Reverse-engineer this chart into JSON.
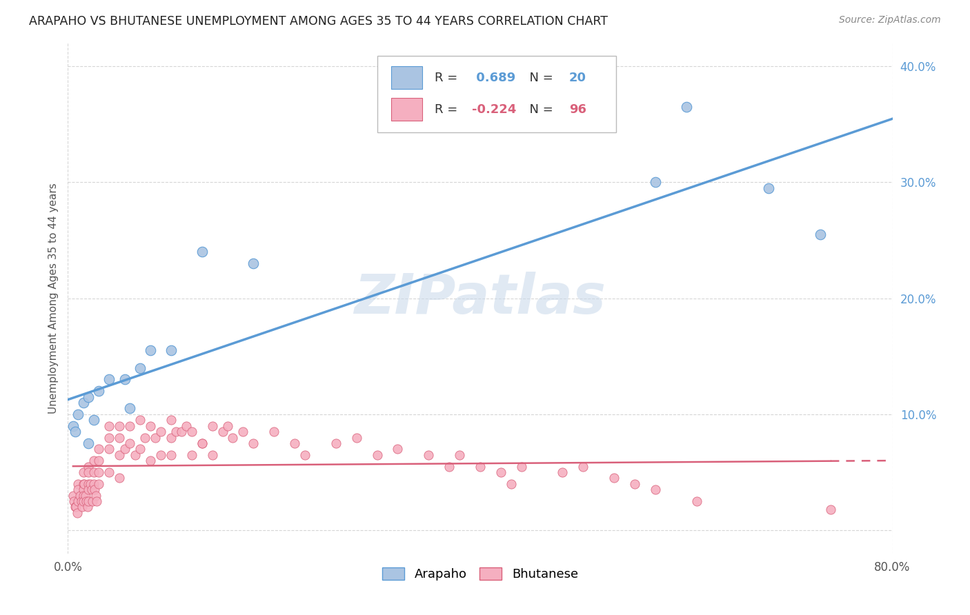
{
  "title": "ARAPAHO VS BHUTANESE UNEMPLOYMENT AMONG AGES 35 TO 44 YEARS CORRELATION CHART",
  "source": "Source: ZipAtlas.com",
  "ylabel": "Unemployment Among Ages 35 to 44 years",
  "xlim": [
    0.0,
    0.8
  ],
  "ylim": [
    -0.02,
    0.42
  ],
  "xtick_positions": [
    0.0,
    0.8
  ],
  "xtick_labels": [
    "0.0%",
    "80.0%"
  ],
  "ytick_positions": [
    0.0,
    0.1,
    0.2,
    0.3,
    0.4
  ],
  "ytick_labels": [
    "",
    "10.0%",
    "20.0%",
    "30.0%",
    "40.0%"
  ],
  "arapaho_R": 0.689,
  "arapaho_N": 20,
  "bhutanese_R": -0.224,
  "bhutanese_N": 96,
  "arapaho_color": "#aac4e2",
  "bhutanese_color": "#f5afc0",
  "arapaho_line_color": "#5b9bd5",
  "bhutanese_line_color": "#d9607a",
  "watermark": "ZIPatlas",
  "arapaho_x": [
    0.005,
    0.007,
    0.01,
    0.015,
    0.02,
    0.02,
    0.025,
    0.03,
    0.04,
    0.055,
    0.06,
    0.07,
    0.08,
    0.1,
    0.13,
    0.18,
    0.57,
    0.6,
    0.68,
    0.73
  ],
  "arapaho_y": [
    0.09,
    0.085,
    0.1,
    0.11,
    0.115,
    0.075,
    0.095,
    0.12,
    0.13,
    0.13,
    0.105,
    0.14,
    0.155,
    0.155,
    0.24,
    0.23,
    0.3,
    0.365,
    0.295,
    0.255
  ],
  "bhutanese_x": [
    0.005,
    0.006,
    0.007,
    0.008,
    0.009,
    0.01,
    0.01,
    0.01,
    0.012,
    0.013,
    0.014,
    0.015,
    0.015,
    0.015,
    0.015,
    0.015,
    0.016,
    0.017,
    0.018,
    0.019,
    0.02,
    0.02,
    0.02,
    0.02,
    0.02,
    0.022,
    0.023,
    0.024,
    0.025,
    0.025,
    0.025,
    0.026,
    0.027,
    0.028,
    0.03,
    0.03,
    0.03,
    0.03,
    0.04,
    0.04,
    0.04,
    0.04,
    0.05,
    0.05,
    0.05,
    0.05,
    0.055,
    0.06,
    0.06,
    0.065,
    0.07,
    0.07,
    0.075,
    0.08,
    0.08,
    0.085,
    0.09,
    0.09,
    0.1,
    0.1,
    0.1,
    0.105,
    0.11,
    0.115,
    0.12,
    0.12,
    0.13,
    0.13,
    0.14,
    0.14,
    0.15,
    0.155,
    0.16,
    0.17,
    0.18,
    0.2,
    0.22,
    0.23,
    0.26,
    0.28,
    0.3,
    0.32,
    0.35,
    0.37,
    0.38,
    0.4,
    0.42,
    0.43,
    0.44,
    0.48,
    0.5,
    0.53,
    0.55,
    0.57,
    0.61,
    0.74
  ],
  "bhutanese_y": [
    0.03,
    0.025,
    0.02,
    0.02,
    0.015,
    0.04,
    0.035,
    0.025,
    0.03,
    0.025,
    0.02,
    0.05,
    0.04,
    0.035,
    0.03,
    0.025,
    0.04,
    0.03,
    0.025,
    0.02,
    0.055,
    0.05,
    0.04,
    0.035,
    0.025,
    0.04,
    0.035,
    0.025,
    0.06,
    0.05,
    0.04,
    0.035,
    0.03,
    0.025,
    0.07,
    0.06,
    0.05,
    0.04,
    0.09,
    0.08,
    0.07,
    0.05,
    0.09,
    0.08,
    0.065,
    0.045,
    0.07,
    0.09,
    0.075,
    0.065,
    0.095,
    0.07,
    0.08,
    0.09,
    0.06,
    0.08,
    0.085,
    0.065,
    0.095,
    0.08,
    0.065,
    0.085,
    0.085,
    0.09,
    0.085,
    0.065,
    0.075,
    0.075,
    0.09,
    0.065,
    0.085,
    0.09,
    0.08,
    0.085,
    0.075,
    0.085,
    0.075,
    0.065,
    0.075,
    0.08,
    0.065,
    0.07,
    0.065,
    0.055,
    0.065,
    0.055,
    0.05,
    0.04,
    0.055,
    0.05,
    0.055,
    0.045,
    0.04,
    0.035,
    0.025,
    0.018
  ],
  "background_color": "#ffffff",
  "grid_color": "#cccccc",
  "legend_label_arapaho": "Arapaho",
  "legend_label_bhutanese": "Bhutanese"
}
